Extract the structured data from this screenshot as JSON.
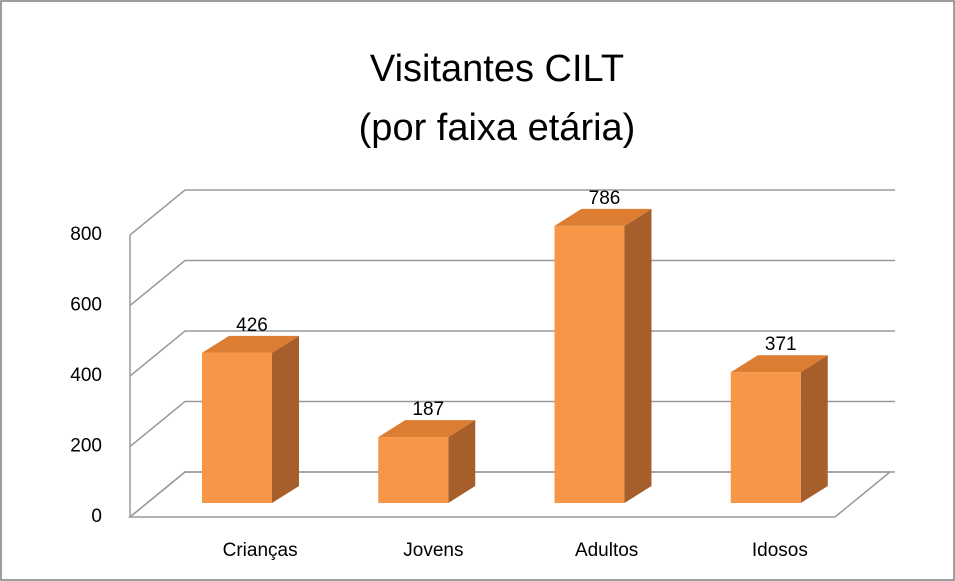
{
  "chart_data": {
    "type": "bar3d",
    "title": [
      "Visitantes CILT",
      "(por faixa etária)"
    ],
    "categories": [
      "Crianças",
      "Jovens",
      "Adultos",
      "Idosos"
    ],
    "values": [
      426,
      187,
      786,
      371
    ],
    "color": "#f79646",
    "ylim": [
      0,
      800
    ],
    "yticks": [
      0,
      200,
      400,
      600,
      800
    ],
    "grid": true
  }
}
